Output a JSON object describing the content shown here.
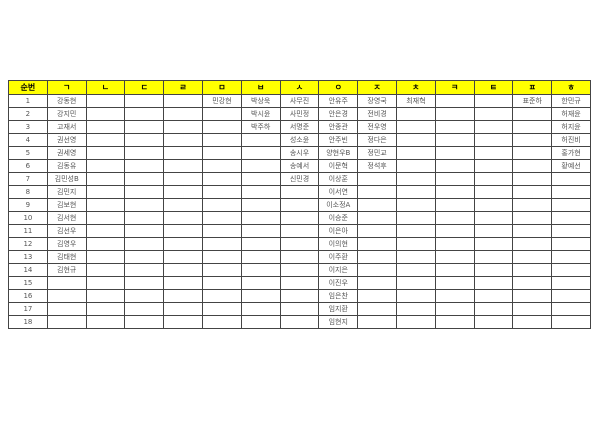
{
  "headers": [
    "순번",
    "ㄱ",
    "ㄴ",
    "ㄷ",
    "ㄹ",
    "ㅁ",
    "ㅂ",
    "ㅅ",
    "ㅇ",
    "ㅈ",
    "ㅊ",
    "ㅋ",
    "ㅌ",
    "ㅍ",
    "ㅎ"
  ],
  "header_color": "#ffff00",
  "rows": [
    [
      "1",
      "강동현",
      "",
      "",
      "",
      "민강현",
      "박상욱",
      "사무진",
      "안유주",
      "장영국",
      "최재혁",
      "",
      "",
      "표준하",
      "한민규"
    ],
    [
      "2",
      "강지민",
      "",
      "",
      "",
      "",
      "박시윤",
      "사민정",
      "안은경",
      "전비경",
      "",
      "",
      "",
      "",
      "허재윤"
    ],
    [
      "3",
      "고재서",
      "",
      "",
      "",
      "",
      "박주하",
      "서명준",
      "안종관",
      "전우영",
      "",
      "",
      "",
      "",
      "허지윤"
    ],
    [
      "4",
      "권선영",
      "",
      "",
      "",
      "",
      "",
      "성소윤",
      "안주빈",
      "정다은",
      "",
      "",
      "",
      "",
      "허진비"
    ],
    [
      "5",
      "권세영",
      "",
      "",
      "",
      "",
      "",
      "송시우",
      "양현우B",
      "정민교",
      "",
      "",
      "",
      "",
      "홍가현"
    ],
    [
      "6",
      "김동유",
      "",
      "",
      "",
      "",
      "",
      "송예서",
      "이문혁",
      "정석후",
      "",
      "",
      "",
      "",
      "황예선"
    ],
    [
      "7",
      "김민성B",
      "",
      "",
      "",
      "",
      "",
      "신민경",
      "이상훈",
      "",
      "",
      "",
      "",
      "",
      ""
    ],
    [
      "8",
      "김민지",
      "",
      "",
      "",
      "",
      "",
      "",
      "이서연",
      "",
      "",
      "",
      "",
      "",
      ""
    ],
    [
      "9",
      "김보현",
      "",
      "",
      "",
      "",
      "",
      "",
      "이소정A",
      "",
      "",
      "",
      "",
      "",
      ""
    ],
    [
      "10",
      "김서현",
      "",
      "",
      "",
      "",
      "",
      "",
      "이승준",
      "",
      "",
      "",
      "",
      "",
      ""
    ],
    [
      "11",
      "김선우",
      "",
      "",
      "",
      "",
      "",
      "",
      "이은아",
      "",
      "",
      "",
      "",
      "",
      ""
    ],
    [
      "12",
      "김영우",
      "",
      "",
      "",
      "",
      "",
      "",
      "이의현",
      "",
      "",
      "",
      "",
      "",
      ""
    ],
    [
      "13",
      "김태현",
      "",
      "",
      "",
      "",
      "",
      "",
      "이주환",
      "",
      "",
      "",
      "",
      "",
      ""
    ],
    [
      "14",
      "김현규",
      "",
      "",
      "",
      "",
      "",
      "",
      "이지은",
      "",
      "",
      "",
      "",
      "",
      ""
    ],
    [
      "15",
      "",
      "",
      "",
      "",
      "",
      "",
      "",
      "이진우",
      "",
      "",
      "",
      "",
      "",
      ""
    ],
    [
      "16",
      "",
      "",
      "",
      "",
      "",
      "",
      "",
      "임은찬",
      "",
      "",
      "",
      "",
      "",
      ""
    ],
    [
      "17",
      "",
      "",
      "",
      "",
      "",
      "",
      "",
      "임지환",
      "",
      "",
      "",
      "",
      "",
      ""
    ],
    [
      "18",
      "",
      "",
      "",
      "",
      "",
      "",
      "",
      "임현지",
      "",
      "",
      "",
      "",
      "",
      ""
    ]
  ]
}
